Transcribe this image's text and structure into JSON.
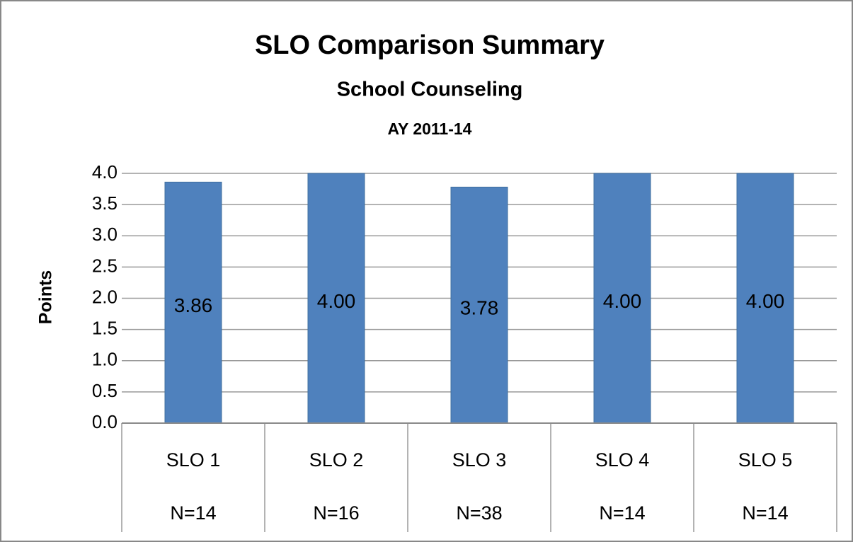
{
  "chart_data": {
    "type": "bar",
    "title": "SLO Comparison Summary",
    "subtitle": "School Counseling",
    "subtitle2": "AY 2011-14",
    "y_label": "Points",
    "categories": [
      "SLO 1",
      "SLO 2",
      "SLO 3",
      "SLO 4",
      "SLO 5"
    ],
    "categories2": [
      "N=14",
      "N=16",
      "N=38",
      "N=14",
      "N=14"
    ],
    "values": [
      3.86,
      4,
      3.78,
      4,
      4
    ],
    "value_labels": [
      "3.86",
      "4.00",
      "3.78",
      "4.00",
      "4.00"
    ],
    "color": "#4f81bd",
    "ylim": [
      0,
      4
    ],
    "yticks": [
      {
        "value": 0,
        "label": "0.0"
      },
      0.5,
      {
        "value": 1,
        "label": "1.0"
      },
      1.5,
      {
        "value": 2,
        "label": "2.0"
      },
      2.5,
      {
        "value": 3,
        "label": "3.0"
      },
      3.5,
      {
        "value": 4,
        "label": "4.0"
      }
    ],
    "grid": true
  }
}
